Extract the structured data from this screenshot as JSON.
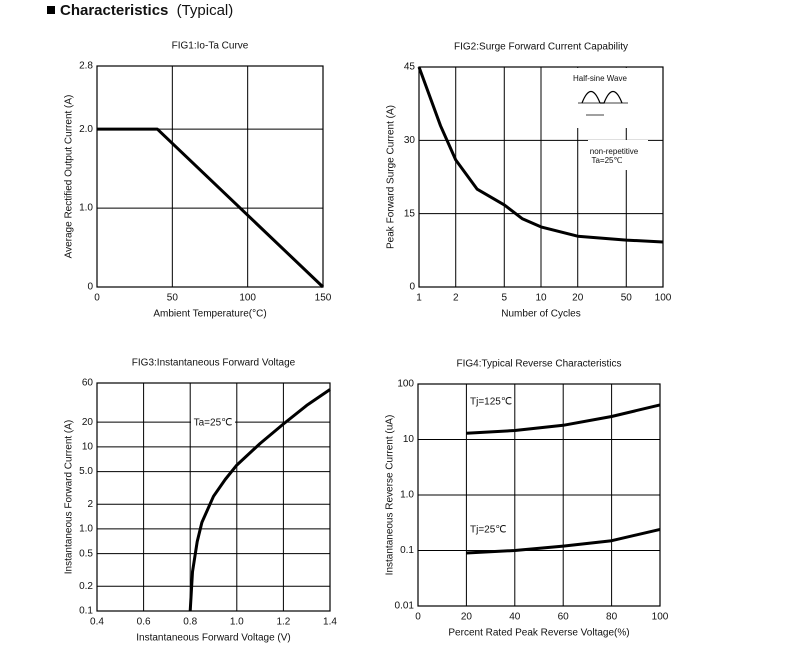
{
  "header": {
    "title": "Characteristics",
    "subtitle": "(Typical)"
  },
  "chart_data": [
    {
      "type": "line",
      "title": "FIG1:Io-Ta Curve",
      "x_label": "Ambient Temperature(°C)",
      "y_label": "Average Rectified Output Current (A)",
      "x": [
        0,
        40,
        150
      ],
      "values": [
        2,
        2,
        0
      ],
      "color": "#000000",
      "xlim": [
        0,
        150
      ],
      "xticks": [
        0,
        50,
        100,
        150
      ],
      "ylim": [
        0,
        2.8
      ],
      "yticks": [
        0,
        {
          "value": 1,
          "label": "1.0"
        },
        {
          "value": 2,
          "label": "2.0"
        },
        2.8
      ],
      "grid": true
    },
    {
      "type": "line",
      "title": "FIG2:Surge Forward Current Capability",
      "x_label": "Number of Cycles",
      "y_label": "Peak Forward Surge Current (A)",
      "annotations": [
        "Half-sine Wave",
        "non-repetitive",
        "Ta=25℃"
      ],
      "x": [
        1,
        1.5,
        2,
        3,
        5,
        7,
        10,
        20,
        50,
        100
      ],
      "values": [
        45,
        33,
        26,
        20,
        16.8,
        14,
        12.3,
        10.4,
        9.6,
        9.2
      ],
      "color": "#000000",
      "xscale": "log",
      "xlim": [
        1,
        100
      ],
      "xticks": [
        1,
        2,
        5,
        10,
        20,
        50,
        100
      ],
      "ylim": [
        0,
        45
      ],
      "yticks": [
        0,
        15,
        30,
        45
      ],
      "grid": true
    },
    {
      "type": "line",
      "title": "FIG3:Instantaneous Forward Voltage",
      "x_label": "Instantaneous Forward Voltage (V)",
      "y_label": "Instantaneous Forward Current (A)",
      "annotations": [
        "Ta=25℃"
      ],
      "x": [
        0.8,
        0.81,
        0.83,
        0.85,
        0.9,
        0.95,
        1.0,
        1.1,
        1.2,
        1.3,
        1.4
      ],
      "values": [
        0.1,
        0.3,
        0.7,
        1.2,
        2.5,
        4,
        6,
        11,
        19,
        32,
        50
      ],
      "color": "#000000",
      "xlim": [
        0.4,
        1.4
      ],
      "xticks": [
        0.4,
        0.6,
        0.8,
        {
          "value": 1,
          "label": "1.0"
        },
        1.2,
        1.4
      ],
      "yscale": "log",
      "ylim": [
        0.1,
        60
      ],
      "yticks": [
        0.1,
        0.2,
        0.5,
        {
          "value": 1,
          "label": "1.0"
        },
        2,
        {
          "value": 5,
          "label": "5.0"
        },
        10,
        20,
        60
      ],
      "grid": true
    },
    {
      "type": "line",
      "title": "FIG4:Typical Reverse Characteristics",
      "x_label": "Percent Rated Peak Reverse Voltage(%)",
      "y_label": "Instantaneous Reverse Current (uA)",
      "x": [
        20,
        40,
        60,
        80,
        100
      ],
      "series": [
        {
          "name": "Tj=125℃",
          "color": "#000000",
          "values": [
            13,
            14.5,
            18,
            26,
            42
          ]
        },
        {
          "name": "Tj=25℃",
          "color": "#000000",
          "values": [
            0.09,
            0.1,
            0.12,
            0.15,
            0.24
          ]
        }
      ],
      "xlim": [
        0,
        100
      ],
      "xticks": [
        0,
        20,
        40,
        60,
        80,
        100
      ],
      "yscale": "log",
      "ylim": [
        0.01,
        100
      ],
      "yticks": [
        0.01,
        0.1,
        {
          "value": 1,
          "label": "1.0"
        },
        10,
        100
      ],
      "grid": true
    }
  ]
}
